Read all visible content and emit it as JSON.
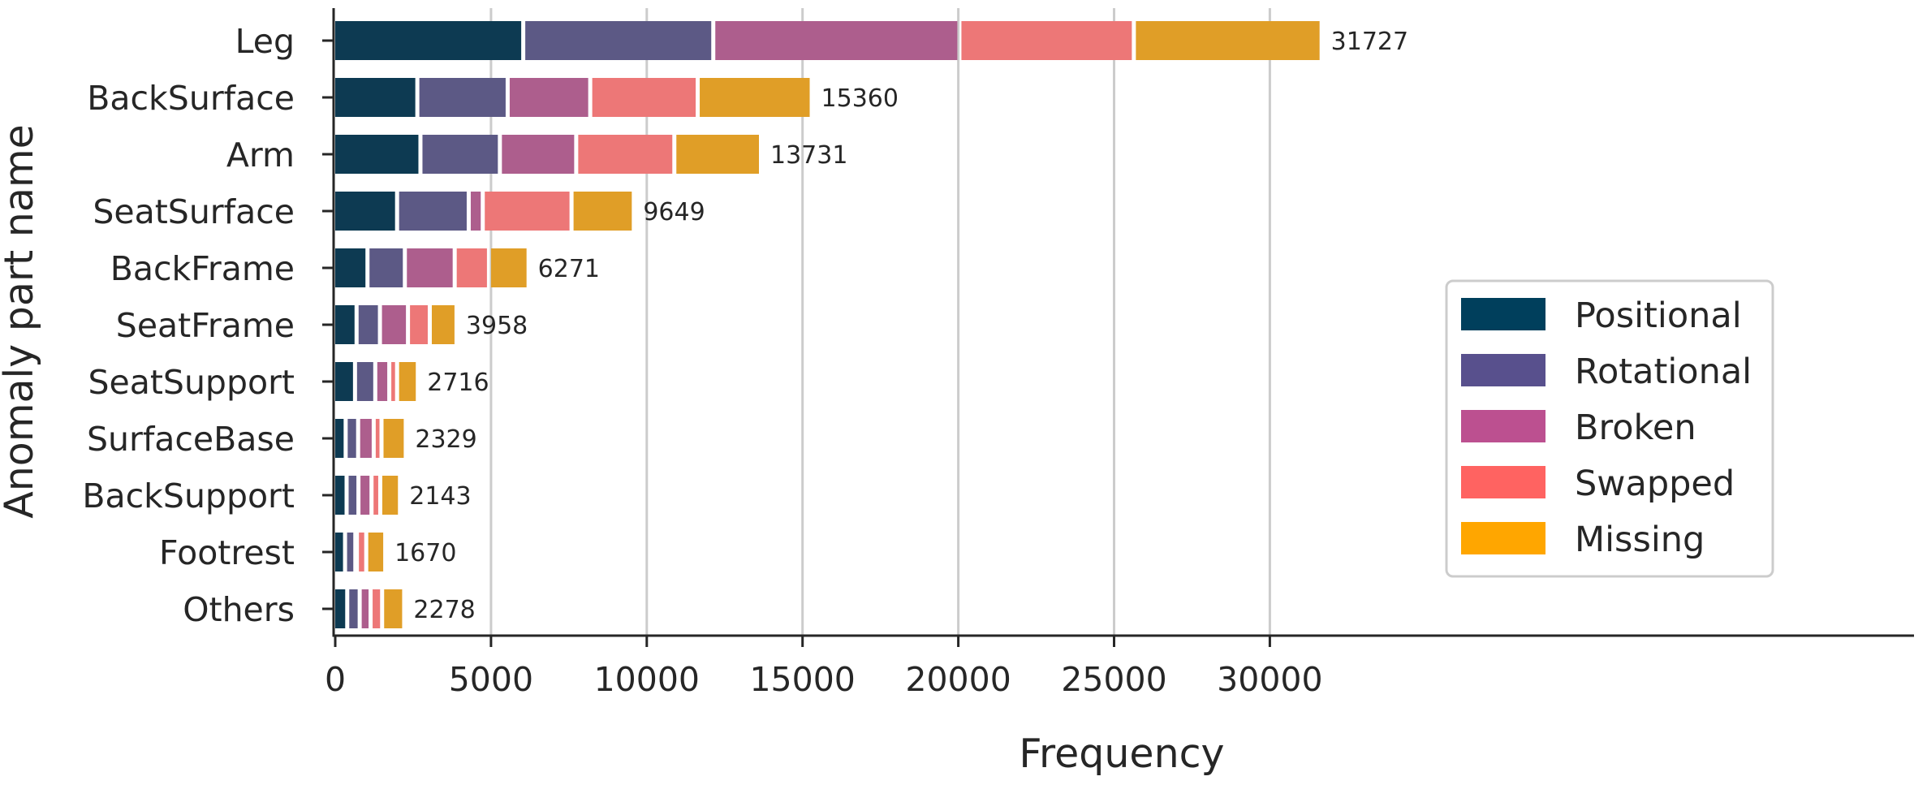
{
  "chart_data": {
    "type": "bar",
    "orientation": "horizontal",
    "stacked": true,
    "xlabel": "Frequency",
    "ylabel": "Anomaly part name",
    "xlim": [
      0,
      33400
    ],
    "xticks": [
      0,
      5000,
      10000,
      15000,
      20000,
      25000,
      30000
    ],
    "grid": "vertical",
    "legend_position": "right",
    "categories": [
      "Leg",
      "BackSurface",
      "Arm",
      "SeatSurface",
      "BackFrame",
      "SeatFrame",
      "SeatSupport",
      "SurfaceBase",
      "BackSupport",
      "Footrest",
      "Others"
    ],
    "totals": [
      31727,
      15360,
      13731,
      9649,
      6271,
      3958,
      2716,
      2329,
      2143,
      1670,
      2278
    ],
    "series": [
      {
        "name": "Positional",
        "color": "#0d3a52",
        "legend_color": "#003f5c",
        "values": [
          6100,
          2700,
          2800,
          2050,
          1100,
          750,
          700,
          400,
          430,
          380,
          450
        ]
      },
      {
        "name": "Rotational",
        "color": "#5c5985",
        "legend_color": "#58508d",
        "values": [
          6100,
          2900,
          2550,
          2300,
          1200,
          750,
          650,
          400,
          380,
          330,
          400
        ]
      },
      {
        "name": "Broken",
        "color": "#ad5e8d",
        "legend_color": "#bc5090",
        "values": [
          7900,
          2650,
          2450,
          450,
          1600,
          900,
          450,
          500,
          420,
          50,
          350
        ]
      },
      {
        "name": "Swapped",
        "color": "#ed7777",
        "legend_color": "#ff6361",
        "values": [
          5600,
          3450,
          3150,
          2850,
          1100,
          700,
          250,
          250,
          280,
          300,
          370
        ]
      },
      {
        "name": "Missing",
        "color": "#e09e27",
        "legend_color": "#ffa600",
        "values": [
          6027,
          3660,
          2781,
          1999,
          1271,
          858,
          666,
          779,
          633,
          610,
          708
        ]
      }
    ]
  }
}
